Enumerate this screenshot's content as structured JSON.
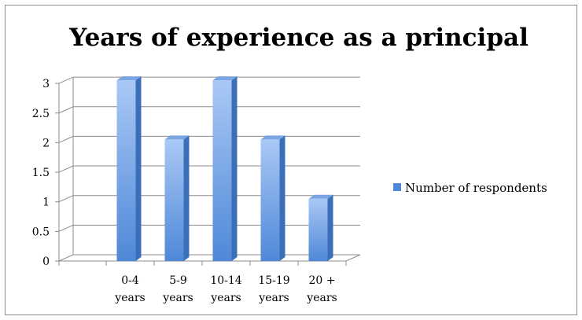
{
  "chart_data": {
    "type": "bar",
    "title": "Years of experience as a principal",
    "categories": [
      [
        "0-4",
        "years"
      ],
      [
        "5-9",
        "years"
      ],
      [
        "10-14",
        "years"
      ],
      [
        "15-19",
        "years"
      ],
      [
        "20 +",
        "years"
      ]
    ],
    "series": [
      {
        "name": "Number of respondents",
        "values": [
          3,
          2,
          3,
          2,
          1
        ]
      }
    ],
    "ylim": [
      0,
      3
    ],
    "yticks": [
      "0",
      "0.5",
      "1",
      "1.5",
      "2",
      "2.5",
      "3"
    ],
    "grid": true,
    "legend_position": "right",
    "colors": {
      "bar_front_light": "#a9c8f5",
      "bar_front_dark": "#4f88d8",
      "bar_side": "#3b6fb8",
      "bar_top": "#7aa5e3",
      "grid": "#8c8c8c"
    }
  }
}
